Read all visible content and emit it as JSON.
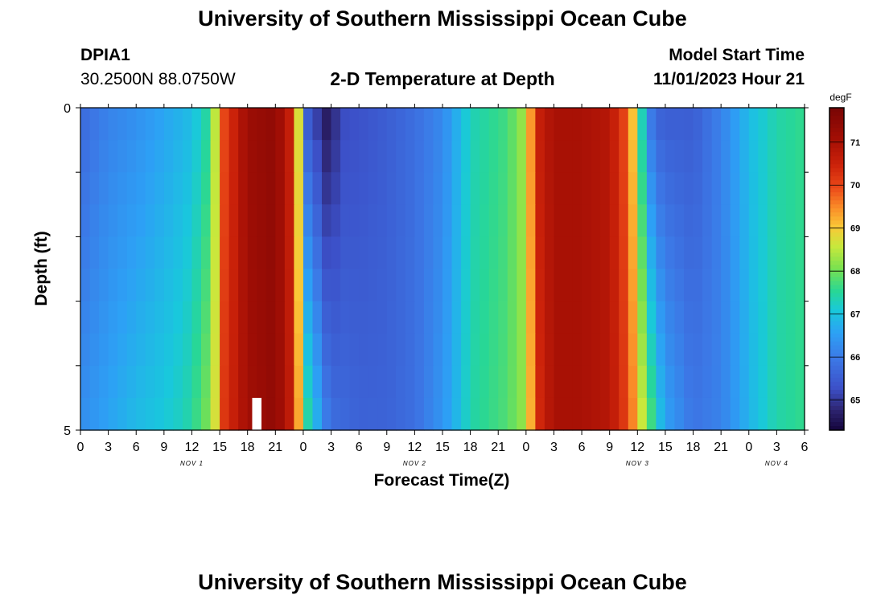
{
  "header": {
    "title": "University of Southern Mississippi Ocean Cube",
    "station_id": "DPIA1",
    "coordinates": "30.2500N  88.0750W",
    "subtitle": "2-D Temperature at Depth",
    "model_label": "Model Start Time",
    "model_time": "11/01/2023 Hour 21"
  },
  "footer": {
    "title": "University of Southern Mississippi Ocean Cube"
  },
  "chart_data": {
    "type": "heatmap",
    "xlabel": "Forecast Time(Z)",
    "ylabel": "Depth (ft)",
    "x_tick_labels": [
      "0",
      "3",
      "6",
      "9",
      "12",
      "15",
      "18",
      "21",
      "0",
      "3",
      "6",
      "9",
      "12",
      "15",
      "18",
      "21",
      "0",
      "3",
      "6",
      "9",
      "12",
      "15",
      "18",
      "21",
      "0",
      "3",
      "6"
    ],
    "x_tick_hours": [
      0,
      3,
      6,
      9,
      12,
      15,
      18,
      21,
      24,
      27,
      30,
      33,
      36,
      39,
      42,
      45,
      48,
      51,
      54,
      57,
      60,
      63,
      66,
      69,
      72,
      75,
      78
    ],
    "date_labels": [
      {
        "label": "NOV 1",
        "hour": 12
      },
      {
        "label": "NOV 2",
        "hour": 36
      },
      {
        "label": "NOV 3",
        "hour": 60
      },
      {
        "label": "NOV 4",
        "hour": 75
      }
    ],
    "xlim": [
      0,
      78
    ],
    "y_tick_labels": [
      "0",
      "5"
    ],
    "ylim": [
      0,
      5
    ],
    "y_levels": [
      0.25,
      0.75,
      1.25,
      1.75,
      2.25,
      2.75,
      3.25,
      3.75,
      4.25,
      4.75
    ],
    "colorbar": {
      "unit": "degF",
      "min": 64.3,
      "max": 71.8,
      "ticks": [
        65,
        66,
        67,
        68,
        69,
        70,
        71
      ]
    },
    "surface_series": {
      "hours": [
        0,
        3,
        6,
        9,
        12,
        13.5,
        14.5,
        15.5,
        18,
        21,
        22.5,
        23.5,
        24,
        24.5,
        25.5,
        26,
        27,
        28,
        30,
        33,
        36,
        39,
        41,
        42,
        44,
        46,
        48,
        48.5,
        49.5,
        51,
        54,
        57,
        59,
        60,
        61,
        62,
        63,
        66,
        69,
        72,
        75,
        78
      ],
      "temps": [
        65.7,
        66.1,
        66.3,
        66.6,
        66.9,
        67.4,
        68.5,
        70.0,
        71.2,
        71.4,
        70.6,
        68.7,
        67.0,
        65.4,
        65.0,
        64.6,
        64.6,
        65.2,
        65.3,
        65.5,
        65.8,
        66.2,
        66.9,
        67.3,
        67.5,
        67.7,
        68.4,
        69.4,
        70.6,
        71.0,
        71.0,
        70.8,
        69.8,
        68.3,
        66.2,
        65.6,
        65.5,
        65.5,
        66.1,
        66.9,
        67.4,
        67.6
      ]
    },
    "bottom_series": {
      "hours": [
        0,
        3,
        6,
        9,
        11,
        12,
        13.5,
        14.5,
        15.5,
        18,
        21,
        22.5,
        23.5,
        24.5,
        25.5,
        26,
        27,
        30,
        33,
        36,
        39,
        41,
        42,
        44,
        46,
        48,
        48.5,
        49.5,
        51,
        54,
        57,
        59,
        60,
        61,
        62,
        63,
        66,
        69,
        72,
        75,
        78
      ],
      "temps": [
        66.3,
        66.6,
        66.9,
        67.1,
        67.3,
        67.5,
        68.0,
        68.7,
        70.2,
        71.1,
        71.4,
        70.7,
        69.3,
        67.5,
        66.8,
        66.3,
        65.8,
        65.6,
        65.6,
        65.8,
        66.4,
        67.0,
        67.4,
        67.6,
        67.8,
        68.3,
        69.2,
        70.4,
        71.0,
        71.0,
        70.8,
        70.0,
        69.1,
        68.2,
        67.3,
        66.6,
        65.9,
        66.1,
        66.8,
        67.4,
        67.6
      ]
    },
    "missing_cell": {
      "hour": 19,
      "depth": 4.75
    }
  }
}
